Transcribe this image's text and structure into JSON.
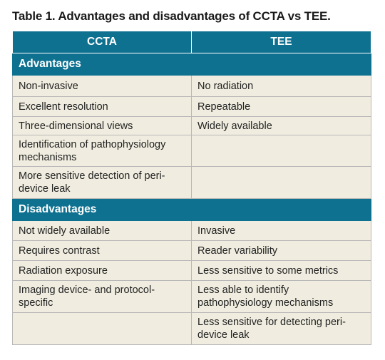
{
  "caption": "Table 1. Advantages and disadvantages of CCTA vs TEE.",
  "columns": [
    "CCTA",
    "TEE"
  ],
  "sections": [
    {
      "title": "Advantages",
      "rows": [
        [
          "Non-invasive",
          "No radiation"
        ],
        [
          "Excellent resolution",
          "Repeatable"
        ],
        [
          "Three-dimensional views",
          "Widely available"
        ],
        [
          "Identification of pathophysiology mechanisms",
          ""
        ],
        [
          "More sensitive detection of peri-device leak",
          ""
        ]
      ]
    },
    {
      "title": "Disadvantages",
      "rows": [
        [
          "Not widely available",
          "Invasive"
        ],
        [
          "Requires contrast",
          "Reader variability"
        ],
        [
          "Radiation exposure",
          "Less sensitive to some metrics"
        ],
        [
          "Imaging device- and protocol-specific",
          "Less able to identify pathophysiology mechanisms"
        ],
        [
          "",
          "Less sensitive for detecting peri-device leak"
        ]
      ]
    }
  ],
  "colors": {
    "header_bg": "#0f7190",
    "row_bg": "#f0ede0",
    "border": "#b7b7b7"
  }
}
